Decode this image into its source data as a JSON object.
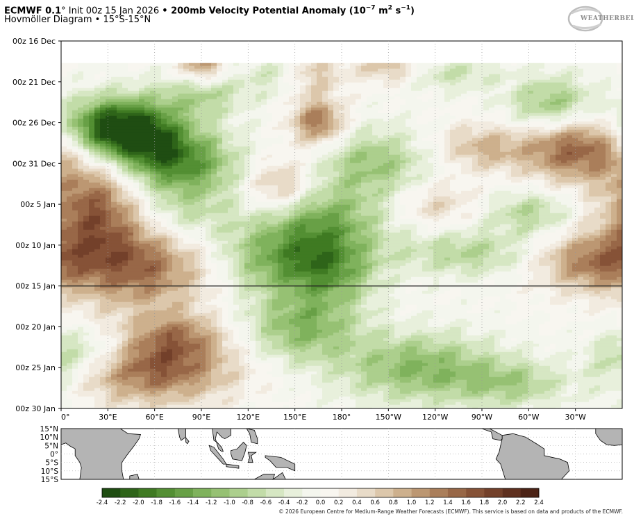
{
  "header": {
    "title_bold_1": "ECMWF 0.1",
    "title_deg": "°",
    "title_init": " Init 00z 15 Jan 2026 ",
    "title_bullet": "•",
    "title_bold_2": " 200mb Velocity Potential Anomaly (10",
    "title_exp": "−7",
    "title_units_mid": " m",
    "title_units_sq": "2",
    "title_units_s": " s",
    "title_units_exp": "−1",
    "title_close": ")",
    "subtitle": "Hovmöller Diagram • 15°S-15°N"
  },
  "logo": {
    "text": "WEATHERBELL"
  },
  "chart_data": {
    "type": "heatmap",
    "title": "200mb Velocity Potential Anomaly (10−7 m2 s−1)",
    "x_ticks": [
      "0°",
      "30°E",
      "60°E",
      "90°E",
      "120°E",
      "150°E",
      "180°",
      "150°W",
      "120°W",
      "90°W",
      "60°W",
      "30°W"
    ],
    "x_tick_values": [
      0,
      30,
      60,
      90,
      120,
      150,
      180,
      210,
      240,
      270,
      300,
      330
    ],
    "xlim": [
      0,
      360
    ],
    "y_ticks": [
      "00z 16 Dec",
      "00z 21 Dec",
      "00z 26 Dec",
      "00z 31 Dec",
      "00z 5 Jan",
      "00z 10 Jan",
      "00z 15 Jan",
      "00z 20 Jan",
      "00z 25 Jan",
      "00z 30 Jan"
    ],
    "y_tick_days": [
      0,
      5,
      10,
      15,
      20,
      25,
      30,
      35,
      40,
      45
    ],
    "init_line_day": 30,
    "data_start_day": 2.7,
    "colorbar_ticks": [
      "-2.4",
      "-2.2",
      "-2.0",
      "-1.8",
      "-1.6",
      "-1.4",
      "-1.2",
      "-1.0",
      "-0.8",
      "-0.6",
      "-0.4",
      "-0.2",
      "0.0",
      "0.2",
      "0.4",
      "0.6",
      "0.8",
      "1.0",
      "1.2",
      "1.4",
      "1.6",
      "1.8",
      "2.0",
      "2.2",
      "2.4"
    ],
    "colorbar_values": [
      -2.4,
      -2.2,
      -2.0,
      -1.8,
      -1.6,
      -1.4,
      -1.2,
      -1.0,
      -0.8,
      -0.6,
      -0.4,
      -0.2,
      0.0,
      0.2,
      0.4,
      0.6,
      0.8,
      1.0,
      1.2,
      1.4,
      1.6,
      1.8,
      2.0,
      2.2,
      2.4
    ],
    "colorbar_colors": [
      "#1f4d12",
      "#2e6419",
      "#3f7a22",
      "#538f33",
      "#68a046",
      "#7fb25c",
      "#96c173",
      "#accf8d",
      "#c2dca8",
      "#d6e7c3",
      "#e8f0dc",
      "#f4f6ee",
      "#f8f6f0",
      "#f2ebe0",
      "#e8dbc8",
      "#dcc7ab",
      "#cdb08d",
      "#bc9772",
      "#aa7e5a",
      "#986747",
      "#865237",
      "#73402a",
      "#5f301f",
      "#4c2316"
    ],
    "features": [
      {
        "lon": 30,
        "day": 10.5,
        "value": -2.0,
        "wlon": 22,
        "wday": 2.5
      },
      {
        "lon": 55,
        "day": 12,
        "value": -1.4,
        "wlon": 20,
        "wday": 3
      },
      {
        "lon": 90,
        "day": 6.5,
        "value": -0.8,
        "wlon": 20,
        "wday": 2
      },
      {
        "lon": 140,
        "day": 4,
        "value": -0.6,
        "wlon": 15,
        "wday": 2
      },
      {
        "lon": 165,
        "day": 10,
        "value": 1.4,
        "wlon": 12,
        "wday": 2
      },
      {
        "lon": 160,
        "day": 4,
        "value": 0.8,
        "wlon": 14,
        "wday": 2
      },
      {
        "lon": 90,
        "day": 3,
        "value": 1.2,
        "wlon": 10,
        "wday": 1.5
      },
      {
        "lon": 210,
        "day": 3,
        "value": 0.8,
        "wlon": 15,
        "wday": 1.5
      },
      {
        "lon": 250,
        "day": 4,
        "value": -0.6,
        "wlon": 20,
        "wday": 1.5
      },
      {
        "lon": 315,
        "day": 8,
        "value": -1.2,
        "wlon": 20,
        "wday": 2.5
      },
      {
        "lon": 330,
        "day": 13,
        "value": 1.6,
        "wlon": 25,
        "wday": 3
      },
      {
        "lon": 270,
        "day": 13,
        "value": 0.8,
        "wlon": 20,
        "wday": 2
      },
      {
        "lon": 80,
        "day": 15,
        "value": -1.4,
        "wlon": 25,
        "wday": 3
      },
      {
        "lon": 200,
        "day": 15,
        "value": -1.0,
        "wlon": 25,
        "wday": 3
      },
      {
        "lon": 140,
        "day": 18,
        "value": 1.0,
        "wlon": 15,
        "wday": 2.5
      },
      {
        "lon": 20,
        "day": 20,
        "value": 1.4,
        "wlon": 22,
        "wday": 4
      },
      {
        "lon": 75,
        "day": 22,
        "value": -0.8,
        "wlon": 25,
        "wday": 3
      },
      {
        "lon": 165,
        "day": 22,
        "value": -1.2,
        "wlon": 30,
        "wday": 3
      },
      {
        "lon": 240,
        "day": 20,
        "value": 0.6,
        "wlon": 20,
        "wday": 2
      },
      {
        "lon": 300,
        "day": 21,
        "value": -0.8,
        "wlon": 20,
        "wday": 2
      },
      {
        "lon": 50,
        "day": 27,
        "value": 1.6,
        "wlon": 35,
        "wday": 4
      },
      {
        "lon": 140,
        "day": 27,
        "value": -1.2,
        "wlon": 30,
        "wday": 3
      },
      {
        "lon": 175,
        "day": 28,
        "value": -1.0,
        "wlon": 20,
        "wday": 3
      },
      {
        "lon": 260,
        "day": 26,
        "value": -0.8,
        "wlon": 30,
        "wday": 2
      },
      {
        "lon": 340,
        "day": 27,
        "value": 1.2,
        "wlon": 25,
        "wday": 2.5
      },
      {
        "lon": 155,
        "day": 35,
        "value": -1.2,
        "wlon": 25,
        "wday": 3
      },
      {
        "lon": 75,
        "day": 36,
        "value": 0.8,
        "wlon": 20,
        "wday": 2
      },
      {
        "lon": 60,
        "day": 40,
        "value": 1.6,
        "wlon": 35,
        "wday": 3
      },
      {
        "lon": 230,
        "day": 40,
        "value": -1.2,
        "wlon": 35,
        "wday": 3
      },
      {
        "lon": 290,
        "day": 42,
        "value": -0.8,
        "wlon": 25,
        "wday": 2
      },
      {
        "lon": 20,
        "day": 38,
        "value": -0.8,
        "wlon": 20,
        "wday": 2
      },
      {
        "lon": 355,
        "day": 40,
        "value": -0.6,
        "wlon": 15,
        "wday": 3
      }
    ]
  },
  "map": {
    "lat_ticks": [
      "15°N",
      "10°N",
      "5°N",
      "0°",
      "5°S",
      "10°S",
      "15°S"
    ]
  },
  "footer": {
    "copyright": "© 2026 European Centre for Medium-Range Weather Forecasts (ECMWF). This service is based on data and products of the ECMWF."
  }
}
